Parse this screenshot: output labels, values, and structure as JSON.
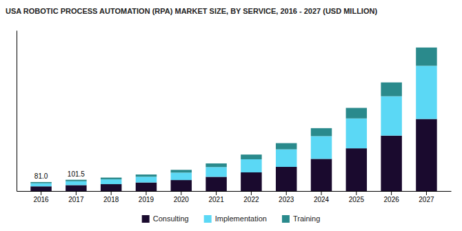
{
  "chart_data": {
    "type": "bar",
    "stacked": true,
    "title": "USA ROBOTIC PROCESS AUTOMATION (RPA) MARKET SIZE, BY SERVICE, 2016 - 2027 (USD MILLION)",
    "categories": [
      "2016",
      "2017",
      "2018",
      "2019",
      "2020",
      "2021",
      "2022",
      "2023",
      "2024",
      "2025",
      "2026",
      "2027"
    ],
    "series": [
      {
        "name": "Consulting",
        "color": "#1a0a2e",
        "values": [
          42,
          53,
          62,
          77,
          99,
          128,
          168,
          218,
          290,
          385,
          500,
          650
        ]
      },
      {
        "name": "Implementation",
        "color": "#5bd8f5",
        "values": [
          28,
          35,
          43,
          52,
          67,
          88,
          118,
          158,
          205,
          270,
          355,
          480
        ]
      },
      {
        "name": "Training",
        "color": "#2a8a8c",
        "values": [
          11,
          13.5,
          16,
          20,
          25,
          33,
          43,
          56,
          72,
          95,
          125,
          165
        ]
      }
    ],
    "annotations": [
      {
        "category": "2016",
        "text": "81.0"
      },
      {
        "category": "2017",
        "text": "101.5"
      }
    ],
    "ylim": [
      0,
      1450
    ],
    "yticks": [],
    "tick_labels": "x",
    "grid": false,
    "legend": "bottom"
  }
}
